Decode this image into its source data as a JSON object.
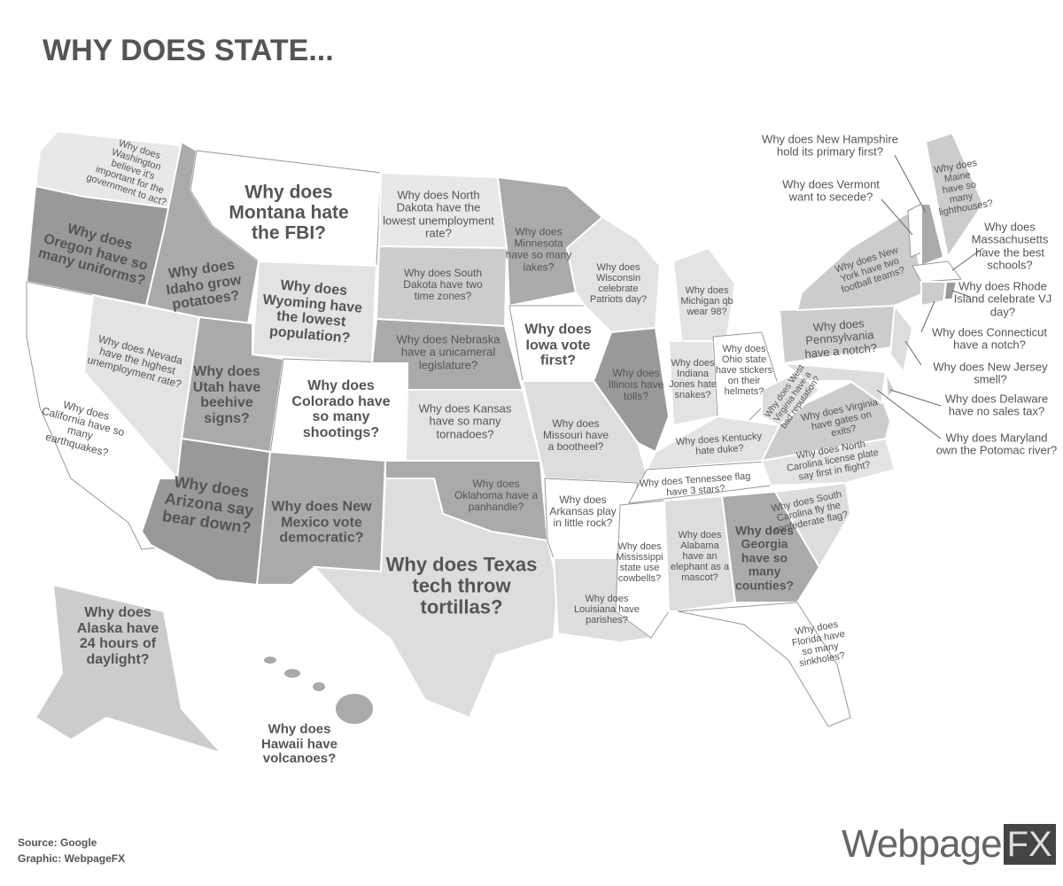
{
  "title": "WHY DOES STATE...",
  "labels": [
    "Why does Washington believe it's important for the government to act?",
    "Why does Montana hate the FBI?",
    "Why does Oregon have so many uniforms?",
    "Why does Idaho grow potatoes?",
    "Why does Wyoming have the lowest population?",
    "Why does Nevada have the highest unemployment rate?",
    "Why does California have so many earthquakes?",
    "Why does Utah have beehive signs?",
    "Why does Colorado have so many shootings?",
    "Why does Arizona say bear down?",
    "Why does New Mexico vote democratic?",
    "Why does North Dakota have the lowest unemployment rate?",
    "Why does South Dakota have two time zones?",
    "Why does Nebraska have a unicameral legislature?",
    "Why does Kansas have so many tornadoes?",
    "Why does Oklahoma have a panhandle?",
    "Why does Texas tech throw tortillas?",
    "Why does Minnesota have so many lakes?",
    "Why does Iowa vote first?",
    "Why does Wisconsin celebrate Patriots day?",
    "Why does Missouri have a bootheel?",
    "Why does Arkansas play in little rock?",
    "Why does Louisiana have parishes?",
    "Why does Illinois have tolls?",
    "Why does Michigan qb wear 98?",
    "Why does Indiana Jones hate snakes?",
    "Why does Ohio state have stickers on their helmets?",
    "Why does Kentucky hate duke?",
    "Why does Tennessee flag have 3 stars?",
    "Why does Mississippi state use cowbells?",
    "Why does Alabama have an elephant as a mascot?",
    "Why does Georgia have so many counties?",
    "Why does Florida have so many sinkholes?",
    "Why does South Carolina fly the confederate flag?",
    "Why does North Carolina license plate say first in flight?",
    "Why does Virginia have gates on exits?",
    "Why does West Virginia have a bad reputation?",
    "Why does Pennsylvania have a notch?",
    "Why does New York have two football teams?",
    "Why does Maine have so many lighthouses?",
    "Why does New Hampshire hold its primary first?",
    "Why does Vermont want to secede?",
    "Why does Massachusetts have the best schools?",
    "Why does Rhode Island celebrate VJ day?",
    "Why does Connecticut have a notch?",
    "Why does New Jersey smell?",
    "Why does Delaware have no sales tax?",
    "Why does Maryland own the Potomac river?",
    "Why does Alaska have 24 hours of daylight?",
    "Why does Hawaii have volcanoes?"
  ],
  "footer": {
    "source": "Source: Google",
    "credit": "Graphic: WebpageFX"
  },
  "logo": {
    "main": "Webpage",
    "accent": "FX"
  }
}
